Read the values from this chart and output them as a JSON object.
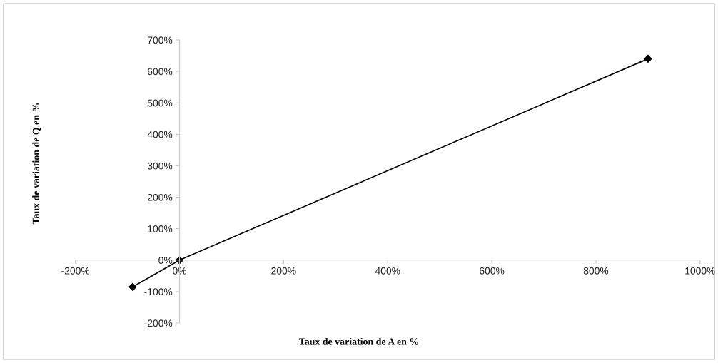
{
  "chart_data": {
    "type": "line",
    "xlabel": "Taux de variation de A en %",
    "ylabel": "Taux de variation de Q en %",
    "x": [
      -90,
      0,
      900
    ],
    "series": [
      {
        "color": "#000000",
        "values": [
          -85,
          0,
          640
        ]
      }
    ],
    "marker": "diamond",
    "line_style": "solid",
    "grid": false,
    "legend": false,
    "xlim": [
      -200,
      1000
    ],
    "ylim": [
      -200,
      700
    ],
    "xticks": [
      {
        "value": -200,
        "label": "-200%"
      },
      {
        "value": 0,
        "label": "0%"
      },
      {
        "value": 200,
        "label": "200%"
      },
      {
        "value": 400,
        "label": "400%"
      },
      {
        "value": 600,
        "label": "600%"
      },
      {
        "value": 800,
        "label": "800%"
      },
      {
        "value": 1000,
        "label": "1000%"
      }
    ],
    "yticks": [
      {
        "value": -200,
        "label": "-200%"
      },
      {
        "value": -100,
        "label": "-100%"
      },
      {
        "value": 0,
        "label": "0%"
      },
      {
        "value": 100,
        "label": "100%"
      },
      {
        "value": 200,
        "label": "200%"
      },
      {
        "value": 300,
        "label": "300%"
      },
      {
        "value": 400,
        "label": "400%"
      },
      {
        "value": 500,
        "label": "500%"
      },
      {
        "value": 600,
        "label": "600%"
      },
      {
        "value": 700,
        "label": "700%"
      }
    ]
  }
}
